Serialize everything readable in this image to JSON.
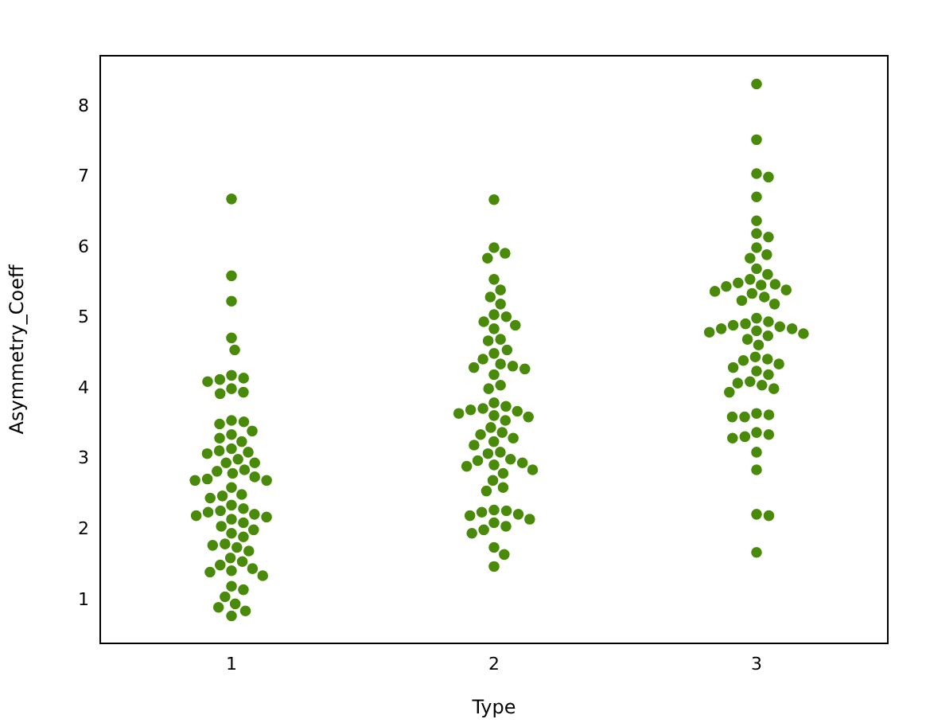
{
  "chart_data": {
    "type": "scatter",
    "xlabel": "Type",
    "ylabel": "Asymmetry_Coeff",
    "categories": [
      "1",
      "2",
      "3"
    ],
    "ylim": [
      0.39,
      8.72
    ],
    "yticks": [
      1,
      2,
      3,
      4,
      5,
      6,
      7,
      8
    ],
    "grid": false,
    "legend": false,
    "marker": "circle",
    "series": [
      {
        "color": "#4a8a0a",
        "x": [
          "1",
          "1",
          "1",
          "1",
          "1",
          "1",
          "1",
          "1",
          "1",
          "1",
          "1",
          "1",
          "1",
          "1",
          "1",
          "1",
          "1",
          "1",
          "1",
          "1",
          "1",
          "1",
          "1",
          "1",
          "1",
          "1",
          "1",
          "1",
          "1",
          "1",
          "1",
          "1",
          "1",
          "1",
          "1",
          "1",
          "1",
          "1",
          "1",
          "1",
          "1",
          "1",
          "1",
          "1",
          "1",
          "1",
          "1",
          "1",
          "1",
          "1",
          "1",
          "1",
          "1",
          "1",
          "1",
          "1",
          "1",
          "1",
          "1",
          "1",
          "1",
          "1",
          "1",
          "1",
          "1",
          "1",
          "1",
          "1"
        ],
        "values": [
          6.69,
          5.6,
          5.24,
          4.72,
          4.55,
          4.19,
          4.15,
          4.13,
          4.1,
          4.0,
          3.95,
          3.93,
          3.55,
          3.53,
          3.5,
          3.4,
          3.35,
          3.3,
          3.25,
          3.15,
          3.12,
          3.1,
          3.08,
          3.0,
          2.95,
          2.95,
          2.85,
          2.83,
          2.8,
          2.75,
          2.72,
          2.7,
          2.7,
          2.6,
          2.5,
          2.48,
          2.45,
          2.35,
          2.3,
          2.27,
          2.25,
          2.22,
          2.2,
          2.18,
          2.15,
          2.1,
          2.05,
          2.0,
          1.95,
          1.9,
          1.8,
          1.78,
          1.75,
          1.7,
          1.6,
          1.55,
          1.5,
          1.45,
          1.42,
          1.4,
          1.35,
          1.2,
          1.15,
          1.05,
          0.95,
          0.9,
          0.85,
          0.78
        ]
      },
      {
        "color": "#4a8a0a",
        "x": [
          "2",
          "2",
          "2",
          "2",
          "2",
          "2",
          "2",
          "2",
          "2",
          "2",
          "2",
          "2",
          "2",
          "2",
          "2",
          "2",
          "2",
          "2",
          "2",
          "2",
          "2",
          "2",
          "2",
          "2",
          "2",
          "2",
          "2",
          "2",
          "2",
          "2",
          "2",
          "2",
          "2",
          "2",
          "2",
          "2",
          "2",
          "2",
          "2",
          "2",
          "2",
          "2",
          "2",
          "2",
          "2",
          "2",
          "2",
          "2",
          "2",
          "2",
          "2",
          "2",
          "2",
          "2",
          "2",
          "2",
          "2",
          "2",
          "2",
          "2",
          "2",
          "2",
          "2",
          "2",
          "2"
        ],
        "values": [
          6.68,
          6.0,
          5.92,
          5.85,
          5.55,
          5.4,
          5.3,
          5.2,
          5.05,
          5.02,
          4.95,
          4.9,
          4.85,
          4.7,
          4.68,
          4.55,
          4.5,
          4.42,
          4.35,
          4.32,
          4.3,
          4.28,
          4.2,
          4.05,
          4.0,
          3.8,
          3.75,
          3.72,
          3.7,
          3.68,
          3.65,
          3.62,
          3.6,
          3.55,
          3.45,
          3.38,
          3.35,
          3.3,
          3.25,
          3.2,
          3.1,
          3.08,
          3.0,
          2.98,
          2.95,
          2.92,
          2.9,
          2.85,
          2.8,
          2.7,
          2.6,
          2.55,
          2.28,
          2.27,
          2.25,
          2.22,
          2.2,
          2.15,
          2.1,
          2.05,
          2.0,
          1.95,
          1.75,
          1.65,
          1.48
        ]
      },
      {
        "color": "#4a8a0a",
        "x": [
          "3",
          "3",
          "3",
          "3",
          "3",
          "3",
          "3",
          "3",
          "3",
          "3",
          "3",
          "3",
          "3",
          "3",
          "3",
          "3",
          "3",
          "3",
          "3",
          "3",
          "3",
          "3",
          "3",
          "3",
          "3",
          "3",
          "3",
          "3",
          "3",
          "3",
          "3",
          "3",
          "3",
          "3",
          "3",
          "3",
          "3",
          "3",
          "3",
          "3",
          "3",
          "3",
          "3",
          "3",
          "3",
          "3",
          "3",
          "3",
          "3",
          "3",
          "3",
          "3",
          "3",
          "3",
          "3",
          "3",
          "3",
          "3",
          "3",
          "3",
          "3",
          "3"
        ],
        "values": [
          8.32,
          7.53,
          7.05,
          7.0,
          6.72,
          6.38,
          6.2,
          6.15,
          6.0,
          5.9,
          5.85,
          5.7,
          5.62,
          5.55,
          5.5,
          5.48,
          5.47,
          5.45,
          5.4,
          5.38,
          5.35,
          5.3,
          5.25,
          5.2,
          5.0,
          4.95,
          4.92,
          4.9,
          4.88,
          4.85,
          4.85,
          4.82,
          4.8,
          4.78,
          4.75,
          4.7,
          4.62,
          4.45,
          4.42,
          4.4,
          4.35,
          4.3,
          4.25,
          4.2,
          4.1,
          4.08,
          4.05,
          4.0,
          3.95,
          3.65,
          3.63,
          3.6,
          3.6,
          3.38,
          3.35,
          3.32,
          3.3,
          3.1,
          2.85,
          2.22,
          2.2,
          1.68
        ]
      }
    ]
  }
}
